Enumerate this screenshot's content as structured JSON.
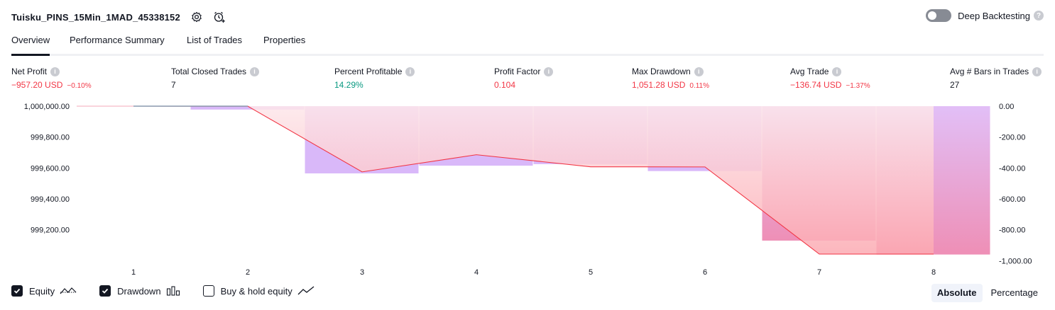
{
  "header": {
    "title": "Tuisku_PINS_15Min_1MAD_45338152",
    "settings_icon": "gear-icon",
    "alert_icon": "add-alert-clock-icon"
  },
  "deep_backtesting": {
    "label": "Deep Backtesting",
    "enabled": false,
    "help": "?"
  },
  "tabs": [
    {
      "label": "Overview",
      "active": true
    },
    {
      "label": "Performance Summary",
      "active": false
    },
    {
      "label": "List of Trades",
      "active": false
    },
    {
      "label": "Properties",
      "active": false
    }
  ],
  "metrics": [
    {
      "label": "Net Profit",
      "value": "−957.20 USD",
      "pct": "−0.10%",
      "color": "#f23645"
    },
    {
      "label": "Total Closed Trades",
      "value": "7",
      "pct": "",
      "color": "#131722"
    },
    {
      "label": "Percent Profitable",
      "value": "14.29%",
      "pct": "",
      "color": "#089981"
    },
    {
      "label": "Profit Factor",
      "value": "0.104",
      "pct": "",
      "color": "#f23645"
    },
    {
      "label": "Max Drawdown",
      "value": "1,051.28 USD",
      "pct": "0.11%",
      "color": "#f23645"
    },
    {
      "label": "Avg Trade",
      "value": "−136.74 USD",
      "pct": "−1.37%",
      "color": "#f23645"
    },
    {
      "label": "Avg # Bars in Trades",
      "value": "27",
      "pct": "",
      "color": "#131722"
    }
  ],
  "chart_data": {
    "type": "line",
    "x": [
      1,
      2,
      3,
      4,
      5,
      6,
      7,
      8
    ],
    "equity_series": {
      "name": "Equity",
      "start": 1000000.0,
      "values": [
        1000000.0,
        999999.7,
        999574.7,
        999685.7,
        999607.7,
        999606.7,
        999042.8,
        999042.8
      ]
    },
    "drawdown_series": {
      "name": "Drawdown",
      "values": [
        0,
        -22,
        -435,
        -385,
        -375,
        -420,
        -870,
        -960
      ]
    },
    "left_axis": {
      "ticks": [
        "1,000,000.00",
        "999,800.00",
        "999,600.00",
        "999,400.00",
        "999,200.00"
      ],
      "tick_values": [
        1000000,
        999800,
        999600,
        999400,
        999200
      ],
      "range": [
        999042.8,
        1000000.0
      ]
    },
    "right_axis": {
      "ticks": [
        "0.00",
        "-200.00",
        "-400.00",
        "-600.00",
        "-800.00",
        "-1,000.00"
      ],
      "tick_values": [
        0,
        -200,
        -400,
        -600,
        -800,
        -1000
      ],
      "range": [
        -957.2,
        0
      ]
    },
    "x_ticks": [
      "1",
      "2",
      "3",
      "4",
      "5",
      "6",
      "7",
      "8"
    ],
    "colors": {
      "equity": "#f23645",
      "drawdown": "#d9b8f9",
      "buy_hold": "#131722"
    }
  },
  "legend": [
    {
      "label": "Equity",
      "checked": true,
      "icon": "equity-line-icon"
    },
    {
      "label": "Drawdown",
      "checked": true,
      "icon": "drawdown-bars-icon"
    },
    {
      "label": "Buy & hold equity",
      "checked": false,
      "icon": "buy-hold-line-icon"
    }
  ],
  "modes": [
    {
      "label": "Absolute",
      "active": true
    },
    {
      "label": "Percentage",
      "active": false
    }
  ]
}
